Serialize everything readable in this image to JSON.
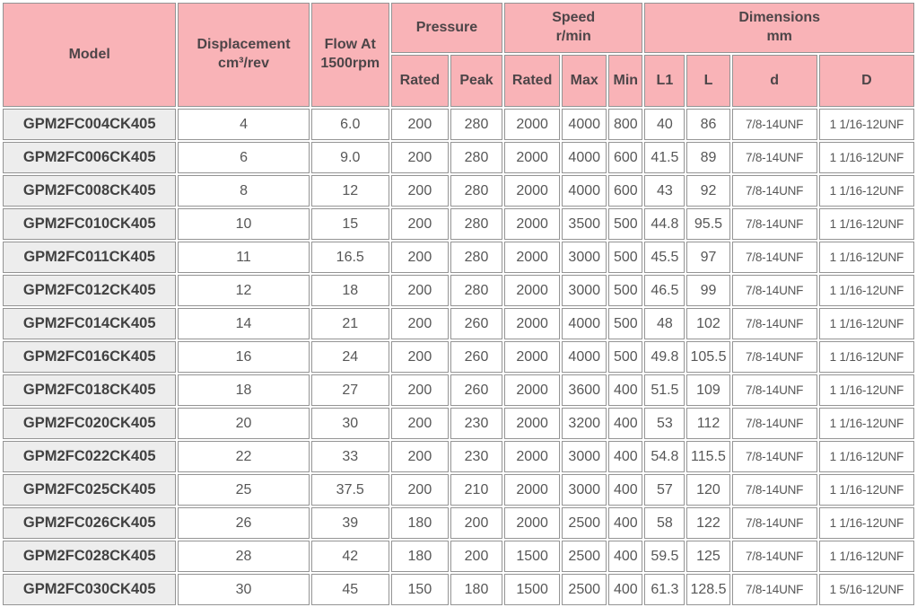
{
  "table": {
    "title_semantics": "Gear pump specification table",
    "header": {
      "model": "Model",
      "displacement": "Displacement\ncm³/rev",
      "flow": "Flow At\n1500rpm",
      "pressure": "Pressure",
      "speed": "Speed\nr/min",
      "dimensions": "Dimensions\nmm",
      "sub": {
        "pressure_rated": "Rated",
        "pressure_peak": "Peak",
        "speed_rated": "Rated",
        "speed_max": "Max",
        "speed_min": "Min",
        "l1": "L1",
        "l": "L",
        "d": "d",
        "D": "D"
      }
    },
    "column_keys": [
      "model",
      "displacement_cm3_rev",
      "flow_at_1500rpm",
      "pressure_rated",
      "pressure_peak",
      "speed_rated",
      "speed_max",
      "speed_min",
      "dim_L1",
      "dim_L",
      "dim_d",
      "dim_D"
    ],
    "rows": [
      [
        "GPM2FC004CK405",
        "4",
        "6.0",
        "200",
        "280",
        "2000",
        "4000",
        "800",
        "40",
        "86",
        "7/8-14UNF",
        "1 1/16-12UNF"
      ],
      [
        "GPM2FC006CK405",
        "6",
        "9.0",
        "200",
        "280",
        "2000",
        "4000",
        "600",
        "41.5",
        "89",
        "7/8-14UNF",
        "1 1/16-12UNF"
      ],
      [
        "GPM2FC008CK405",
        "8",
        "12",
        "200",
        "280",
        "2000",
        "4000",
        "600",
        "43",
        "92",
        "7/8-14UNF",
        "1 1/16-12UNF"
      ],
      [
        "GPM2FC010CK405",
        "10",
        "15",
        "200",
        "280",
        "2000",
        "3500",
        "500",
        "44.8",
        "95.5",
        "7/8-14UNF",
        "1 1/16-12UNF"
      ],
      [
        "GPM2FC011CK405",
        "11",
        "16.5",
        "200",
        "280",
        "2000",
        "3000",
        "500",
        "45.5",
        "97",
        "7/8-14UNF",
        "1 1/16-12UNF"
      ],
      [
        "GPM2FC012CK405",
        "12",
        "18",
        "200",
        "280",
        "2000",
        "3000",
        "500",
        "46.5",
        "99",
        "7/8-14UNF",
        "1 1/16-12UNF"
      ],
      [
        "GPM2FC014CK405",
        "14",
        "21",
        "200",
        "260",
        "2000",
        "4000",
        "500",
        "48",
        "102",
        "7/8-14UNF",
        "1 1/16-12UNF"
      ],
      [
        "GPM2FC016CK405",
        "16",
        "24",
        "200",
        "260",
        "2000",
        "4000",
        "500",
        "49.8",
        "105.5",
        "7/8-14UNF",
        "1 1/16-12UNF"
      ],
      [
        "GPM2FC018CK405",
        "18",
        "27",
        "200",
        "260",
        "2000",
        "3600",
        "400",
        "51.5",
        "109",
        "7/8-14UNF",
        "1 1/16-12UNF"
      ],
      [
        "GPM2FC020CK405",
        "20",
        "30",
        "200",
        "230",
        "2000",
        "3200",
        "400",
        "53",
        "112",
        "7/8-14UNF",
        "1 1/16-12UNF"
      ],
      [
        "GPM2FC022CK405",
        "22",
        "33",
        "200",
        "230",
        "2000",
        "3000",
        "400",
        "54.8",
        "115.5",
        "7/8-14UNF",
        "1 1/16-12UNF"
      ],
      [
        "GPM2FC025CK405",
        "25",
        "37.5",
        "200",
        "210",
        "2000",
        "3000",
        "400",
        "57",
        "120",
        "7/8-14UNF",
        "1 1/16-12UNF"
      ],
      [
        "GPM2FC026CK405",
        "26",
        "39",
        "180",
        "200",
        "2000",
        "2500",
        "400",
        "58",
        "122",
        "7/8-14UNF",
        "1 1/16-12UNF"
      ],
      [
        "GPM2FC028CK405",
        "28",
        "42",
        "180",
        "200",
        "1500",
        "2500",
        "400",
        "59.5",
        "125",
        "7/8-14UNF",
        "1 1/16-12UNF"
      ],
      [
        "GPM2FC030CK405",
        "30",
        "45",
        "150",
        "180",
        "1500",
        "2500",
        "400",
        "61.3",
        "128.5",
        "7/8-14UNF",
        "1 5/16-12UNF"
      ]
    ]
  },
  "colors": {
    "header_bg": "#f9b3b7",
    "model_column_bg": "#ededed",
    "cell_bg": "#ffffff",
    "border": "#949494",
    "header_text": "#4d4548",
    "body_text": "#575757"
  }
}
